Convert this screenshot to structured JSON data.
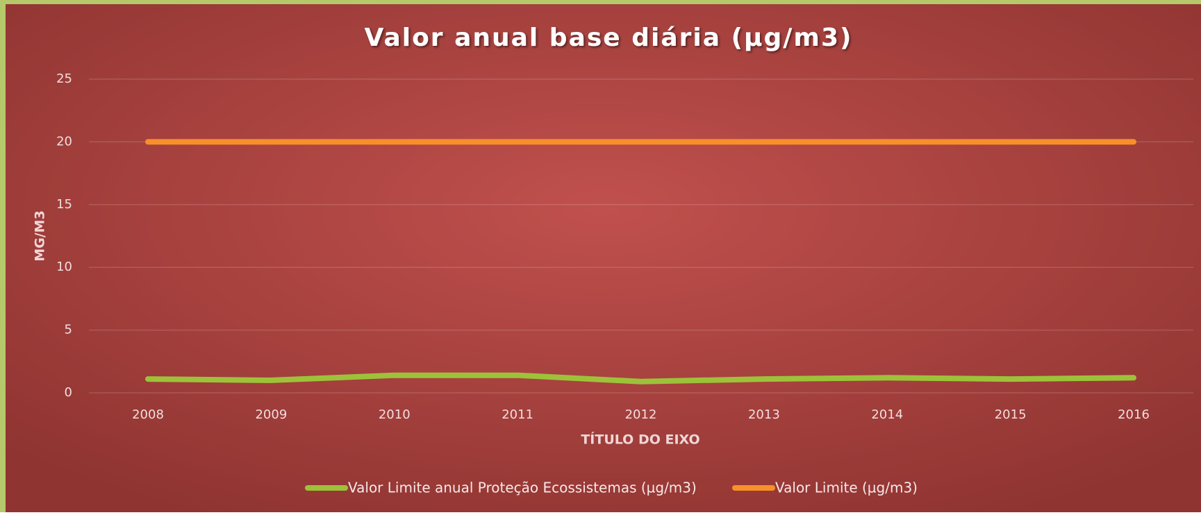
{
  "chart_data": {
    "type": "line",
    "title": "Valor anual base diária (µg/m3)",
    "x_label": "TÍTULO DO EIXO",
    "y_label": "MG/M3",
    "categories": [
      "2008",
      "2009",
      "2010",
      "2011",
      "2012",
      "2013",
      "2014",
      "2015",
      "2016"
    ],
    "series": [
      {
        "name": "Valor Limite anual Proteção Ecossistemas (µg/m3)",
        "color": "#9dc23a",
        "values": [
          1.1,
          1.0,
          1.4,
          1.4,
          0.9,
          1.1,
          1.2,
          1.1,
          1.2
        ]
      },
      {
        "name": "Valor Limite (µg/m3)",
        "color": "#f7902a",
        "values": [
          20,
          20,
          20,
          20,
          20,
          20,
          20,
          20,
          20
        ]
      }
    ],
    "ylim": [
      0,
      25
    ],
    "yticks": [
      0,
      5,
      10,
      15,
      20,
      25
    ],
    "grid": true,
    "legend": "bottom"
  }
}
